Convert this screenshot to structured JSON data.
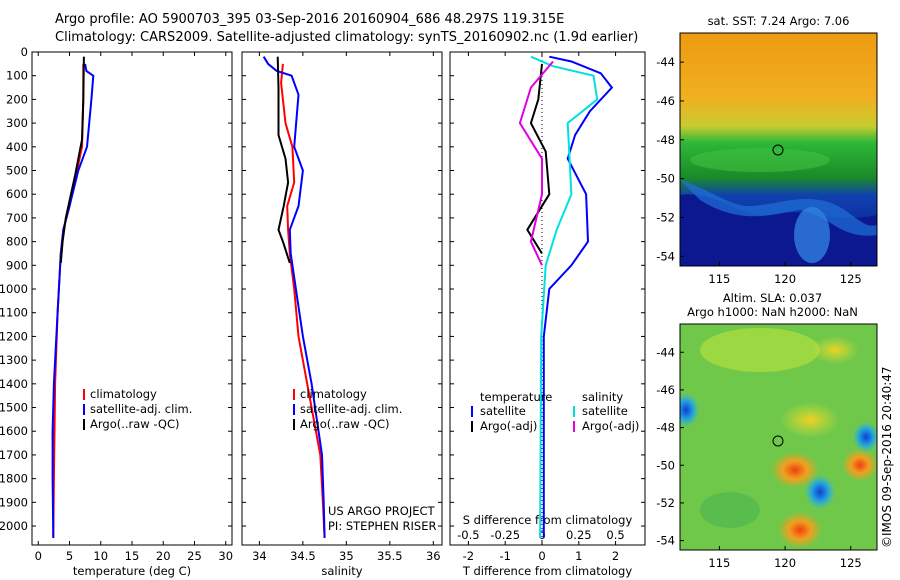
{
  "header": {
    "line1": "Argo profile: AO 5900703_395 03-Sep-2016 20160904_686 48.297S 119.315E",
    "line2": "Climatology: CARS2009. Satellite-adjusted climatology: synTS_20160902.nc (1.9d earlier)"
  },
  "credit": "©IMOS 09-Sep-2016 20:40:47",
  "chart_data": [
    {
      "type": "line",
      "id": "temperature-panel",
      "xlabel": "temperature (deg C)",
      "xlim": [
        -1,
        31
      ],
      "xticks": [
        "0",
        "5",
        "10",
        "15",
        "20",
        "25",
        "30"
      ],
      "ylim": [
        2080,
        0
      ],
      "yticks": [
        "0",
        "100",
        "200",
        "300",
        "400",
        "500",
        "600",
        "700",
        "800",
        "900",
        "1000",
        "1100",
        "1200",
        "1300",
        "1400",
        "1500",
        "1600",
        "1700",
        "1800",
        "1900",
        "2000"
      ],
      "legend": [
        "climatology",
        "satellite-adj. clim.",
        "Argo(..raw -QC)"
      ],
      "series": [
        {
          "name": "climatology",
          "color": "#ff0000",
          "points": [
            [
              7.2,
              50
            ],
            [
              7.2,
              200
            ],
            [
              7.0,
              400
            ],
            [
              6.2,
              500
            ],
            [
              5.0,
              650
            ],
            [
              4.0,
              750
            ],
            [
              3.6,
              850
            ],
            [
              3.1,
              1100
            ],
            [
              2.7,
              1400
            ],
            [
              2.6,
              1600
            ],
            [
              2.5,
              1800
            ],
            [
              2.4,
              2050
            ]
          ]
        },
        {
          "name": "satellite-adj. clim.",
          "color": "#0000ff",
          "points": [
            [
              7.5,
              50
            ],
            [
              7.7,
              80
            ],
            [
              8.8,
              100
            ],
            [
              8.5,
              200
            ],
            [
              7.8,
              400
            ],
            [
              6.4,
              500
            ],
            [
              5.0,
              650
            ],
            [
              4.0,
              750
            ],
            [
              3.6,
              850
            ],
            [
              3.1,
              1100
            ],
            [
              2.5,
              1400
            ],
            [
              2.3,
              1600
            ],
            [
              2.3,
              1800
            ],
            [
              2.4,
              2050
            ]
          ]
        },
        {
          "name": "Argo(..raw -QC)",
          "color": "#000000",
          "points": [
            [
              7.3,
              20
            ],
            [
              7.2,
              200
            ],
            [
              7.0,
              370
            ],
            [
              5.9,
              520
            ],
            [
              4.4,
              700
            ],
            [
              3.9,
              800
            ],
            [
              3.6,
              890
            ]
          ]
        }
      ]
    },
    {
      "type": "line",
      "id": "salinity-panel",
      "xlabel": "salinity",
      "xlim": [
        33.8,
        36.1
      ],
      "xticks": [
        "34",
        "34.5",
        "35",
        "35.5",
        "36"
      ],
      "ylim": [
        2080,
        0
      ],
      "legend": [
        "climatology",
        "satellite-adj. clim.",
        "Argo(..raw -QC)"
      ],
      "annotations": [
        "US ARGO PROJECT",
        "PI: STEPHEN RISER"
      ],
      "series": [
        {
          "name": "climatology",
          "color": "#ff0000",
          "points": [
            [
              34.27,
              50
            ],
            [
              34.25,
              130
            ],
            [
              34.3,
              300
            ],
            [
              34.38,
              400
            ],
            [
              34.4,
              550
            ],
            [
              34.32,
              650
            ],
            [
              34.33,
              750
            ],
            [
              34.35,
              850
            ],
            [
              34.4,
              1000
            ],
            [
              34.45,
              1200
            ],
            [
              34.55,
              1400
            ],
            [
              34.7,
              1700
            ],
            [
              34.73,
              1900
            ],
            [
              34.75,
              2050
            ]
          ]
        },
        {
          "name": "satellite-adj. clim.",
          "color": "#0000ff",
          "points": [
            [
              34.05,
              20
            ],
            [
              34.1,
              50
            ],
            [
              34.2,
              80
            ],
            [
              34.37,
              100
            ],
            [
              34.45,
              180
            ],
            [
              34.4,
              400
            ],
            [
              34.5,
              500
            ],
            [
              34.45,
              650
            ],
            [
              34.35,
              750
            ],
            [
              34.36,
              850
            ],
            [
              34.42,
              1000
            ],
            [
              34.5,
              1200
            ],
            [
              34.6,
              1400
            ],
            [
              34.72,
              1700
            ],
            [
              34.74,
              1900
            ],
            [
              34.75,
              2050
            ]
          ]
        },
        {
          "name": "Argo(..raw -QC)",
          "color": "#000000",
          "points": [
            [
              34.21,
              20
            ],
            [
              34.22,
              150
            ],
            [
              34.22,
              350
            ],
            [
              34.3,
              450
            ],
            [
              34.33,
              550
            ],
            [
              34.28,
              650
            ],
            [
              34.22,
              750
            ],
            [
              34.27,
              800
            ],
            [
              34.35,
              890
            ]
          ]
        }
      ]
    },
    {
      "type": "line",
      "id": "difference-panel",
      "xlabel": "T difference from climatology",
      "xlabel2": "S difference from climatology",
      "xlim": [
        -2.5,
        2.8
      ],
      "xticks": [
        "-2",
        "-1",
        "0",
        "1",
        "2"
      ],
      "xticks2": [
        "-0.5",
        "-0.25",
        "0",
        "0.25",
        "0.5"
      ],
      "ylim": [
        2080,
        0
      ],
      "legend_temperature": {
        "title": "temperature",
        "items": [
          "satellite",
          "Argo(-adj)"
        ]
      },
      "legend_salinity": {
        "title": "salinity",
        "items": [
          "satellite",
          "Argo(-adj)"
        ]
      },
      "series": [
        {
          "name": "temperature satellite",
          "color": "#0000ff",
          "points": [
            [
              0.2,
              20
            ],
            [
              0.8,
              40
            ],
            [
              1.6,
              90
            ],
            [
              1.9,
              150
            ],
            [
              1.3,
              250
            ],
            [
              0.9,
              350
            ],
            [
              0.7,
              450
            ],
            [
              1.2,
              600
            ],
            [
              1.25,
              800
            ],
            [
              0.8,
              900
            ],
            [
              0.2,
              1000
            ],
            [
              0.05,
              1200
            ],
            [
              0.05,
              2050
            ]
          ]
        },
        {
          "name": "temperature Argo(-adj)",
          "color": "#000000",
          "points": [
            [
              0.0,
              50
            ],
            [
              -0.1,
              200
            ],
            [
              -0.3,
              300
            ],
            [
              0.1,
              420
            ],
            [
              0.2,
              600
            ],
            [
              -0.4,
              750
            ],
            [
              0.0,
              850
            ]
          ]
        },
        {
          "name": "salinity satellite",
          "color": "#00e0e0",
          "points": [
            [
              -0.3,
              20
            ],
            [
              0.3,
              60
            ],
            [
              1.4,
              100
            ],
            [
              1.5,
              200
            ],
            [
              0.7,
              300
            ],
            [
              0.8,
              600
            ],
            [
              0.4,
              750
            ],
            [
              0.1,
              900
            ],
            [
              -0.02,
              1200
            ],
            [
              -0.05,
              2050
            ]
          ]
        },
        {
          "name": "salinity Argo(-adj)",
          "color": "#e000e0",
          "points": [
            [
              0.3,
              40
            ],
            [
              -0.3,
              150
            ],
            [
              -0.6,
              300
            ],
            [
              0.0,
              450
            ],
            [
              0.0,
              600
            ],
            [
              -0.3,
              800
            ],
            [
              0.0,
              900
            ]
          ]
        }
      ]
    }
  ],
  "map_panels": [
    {
      "title": "sat. SST: 7.24 Argo: 7.06",
      "xticks": [
        "115",
        "120",
        "125"
      ],
      "yticks": [
        "-44",
        "-46",
        "-48",
        "-50",
        "-52",
        "-54"
      ]
    },
    {
      "title1": "Altim. SLA: 0.037",
      "title2": "Argo h1000: NaN h2000: NaN",
      "xticks": [
        "115",
        "120",
        "125"
      ],
      "yticks": [
        "-44",
        "-46",
        "-48",
        "-50",
        "-52",
        "-54"
      ]
    }
  ]
}
